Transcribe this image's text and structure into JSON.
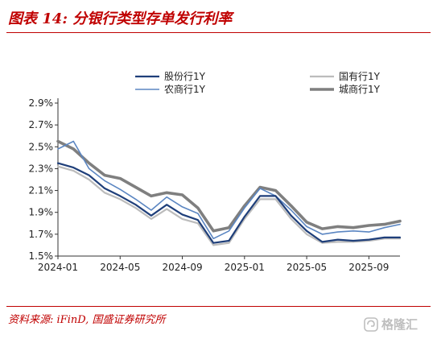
{
  "title": "图表 14:  分银行类型存单发行利率",
  "source": "资料来源: iFinD, 国盛证券研究所",
  "watermark_logo": "格隆汇",
  "colors": {
    "title_red": "#c00000",
    "series_joint_stock": "#1f3f7a",
    "series_state_owned": "#bcbcbc",
    "series_rural": "#5b86c2",
    "series_city": "#7f7f7f"
  },
  "chart_data": {
    "type": "line",
    "title": "",
    "xlabel": "",
    "ylabel": "",
    "ylim": [
      1.5,
      2.9
    ],
    "yticks": [
      "1.5%",
      "1.7%",
      "1.9%",
      "2.1%",
      "2.3%",
      "2.5%",
      "2.7%",
      "2.9%"
    ],
    "xticks": [
      "2024-01",
      "2024-05",
      "2024-09",
      "2025-01",
      "2025-05",
      "2025-09"
    ],
    "xrange": [
      "2024-01",
      "2025-11"
    ],
    "grid": false,
    "legend_position": "top",
    "x": [
      "2024-01",
      "2024-02",
      "2024-03",
      "2024-04",
      "2024-05",
      "2024-06",
      "2024-07",
      "2024-08",
      "2024-09",
      "2024-10",
      "2024-11",
      "2024-12",
      "2025-01",
      "2025-02",
      "2025-03",
      "2025-04",
      "2025-05",
      "2025-06",
      "2025-07",
      "2025-08",
      "2025-09",
      "2025-10",
      "2025-11"
    ],
    "series": [
      {
        "name": "股份行1Y",
        "color": "#1f3f7a",
        "width": 2.2,
        "values": [
          2.35,
          2.31,
          2.24,
          2.12,
          2.05,
          1.97,
          1.87,
          1.97,
          1.88,
          1.83,
          1.62,
          1.64,
          1.86,
          2.05,
          2.05,
          1.87,
          1.73,
          1.63,
          1.65,
          1.64,
          1.65,
          1.67,
          1.67
        ]
      },
      {
        "name": "国有行1Y",
        "color": "#bcbcbc",
        "width": 2.2,
        "values": [
          2.32,
          2.28,
          2.2,
          2.08,
          2.02,
          1.94,
          1.84,
          1.93,
          1.84,
          1.8,
          1.6,
          1.62,
          1.84,
          2.02,
          2.02,
          1.84,
          1.7,
          1.62,
          1.63,
          1.63,
          1.64,
          1.66,
          1.66
        ]
      },
      {
        "name": "农商行1Y",
        "color": "#5b86c2",
        "width": 1.6,
        "values": [
          2.48,
          2.55,
          2.3,
          2.19,
          2.11,
          2.02,
          1.92,
          2.04,
          1.95,
          1.89,
          1.66,
          1.73,
          1.94,
          2.12,
          2.05,
          1.92,
          1.77,
          1.7,
          1.72,
          1.73,
          1.72,
          1.76,
          1.79
        ]
      },
      {
        "name": "城商行1Y",
        "color": "#7f7f7f",
        "width": 3.6,
        "values": [
          2.55,
          2.48,
          2.35,
          2.24,
          2.21,
          2.13,
          2.05,
          2.08,
          2.06,
          1.94,
          1.73,
          1.76,
          1.96,
          2.13,
          2.1,
          1.96,
          1.81,
          1.75,
          1.77,
          1.76,
          1.78,
          1.79,
          1.82
        ]
      }
    ]
  }
}
